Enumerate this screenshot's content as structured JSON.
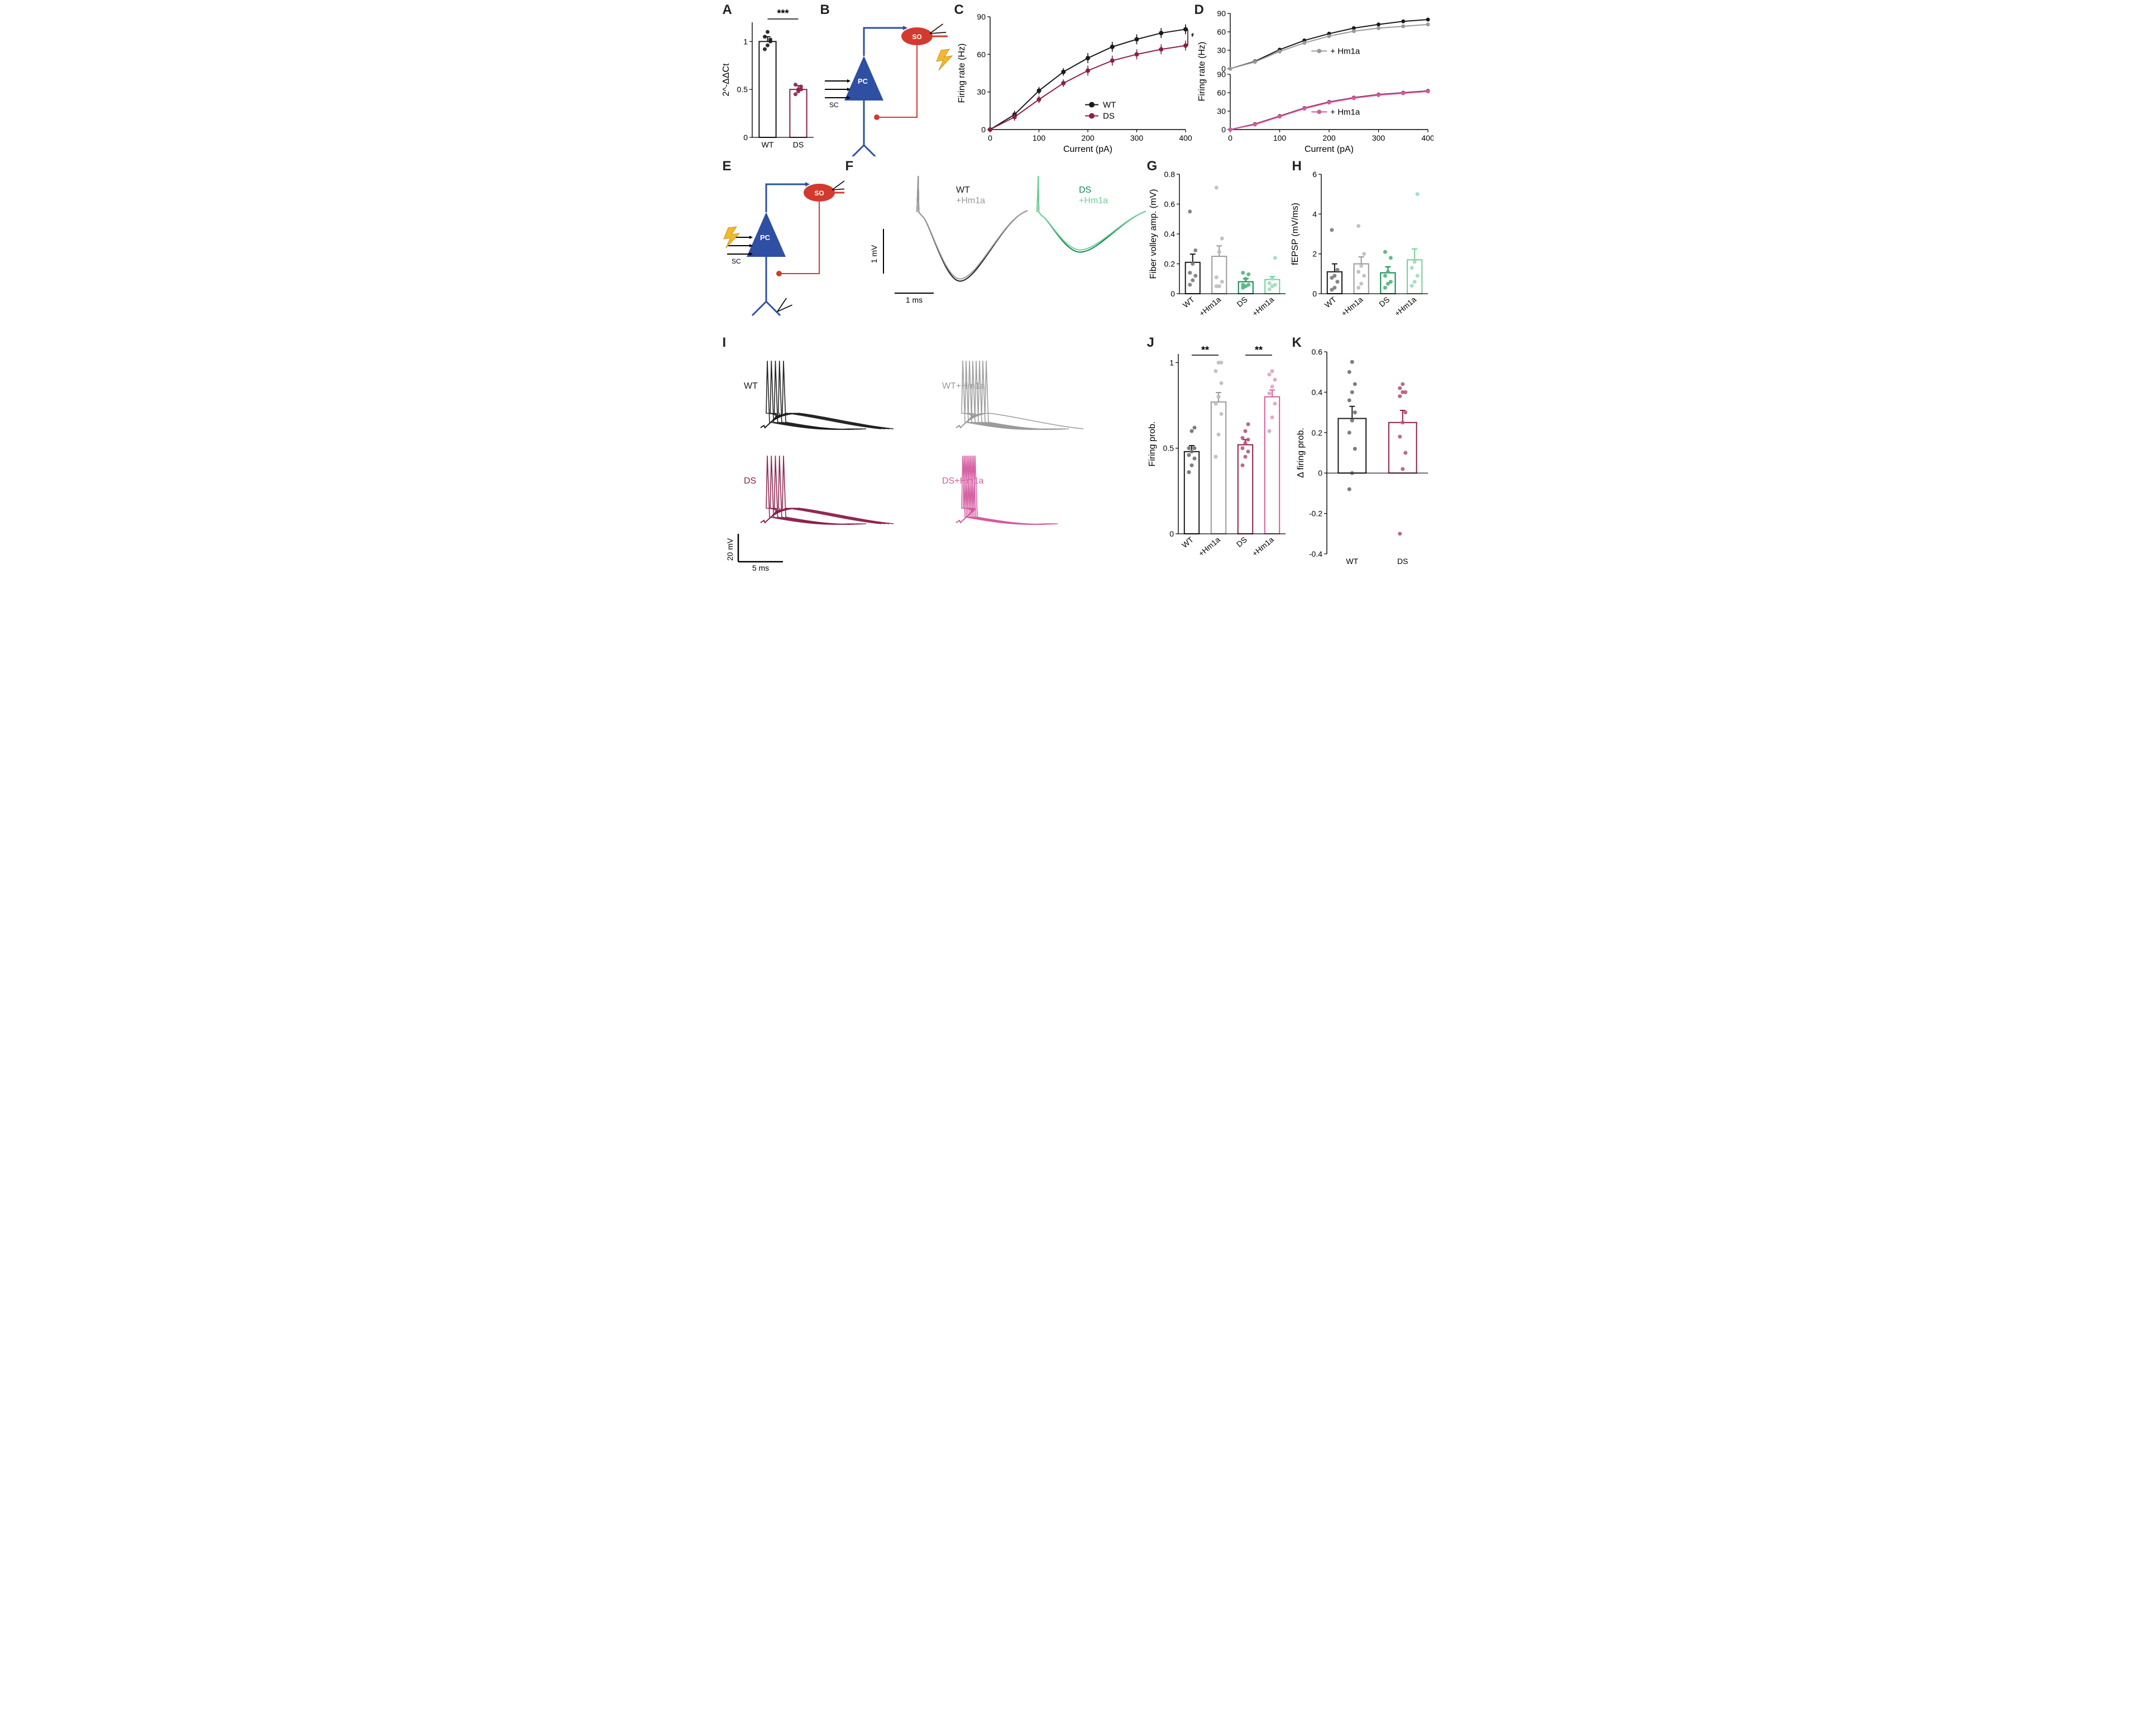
{
  "palette": {
    "wt": "#1a1a1a",
    "wt_grey": "#9a9a9a",
    "ds": "#8b1e4a",
    "ds_light": "#d45ba0",
    "ds_green": "#0e8a4f",
    "ds_green_light": "#6fd09a",
    "bg": "#ffffff",
    "pc_blue": "#2e4fa3",
    "so_red": "#d33a2f",
    "bolt": "#f2b92e"
  },
  "A": {
    "label": "A",
    "type": "bar",
    "ylabel": "2^-ΔΔCt",
    "ylim": [
      0,
      1.2
    ],
    "yticks": [
      0,
      0.5,
      1.0
    ],
    "categories": [
      "WT",
      "DS"
    ],
    "means": [
      1.0,
      0.5
    ],
    "sem": [
      0.05,
      0.04
    ],
    "points": {
      "WT": [
        0.92,
        0.96,
        1.0,
        1.05,
        1.1,
        1.02
      ],
      "DS": [
        0.45,
        0.48,
        0.5,
        0.55,
        0.5,
        0.53
      ]
    },
    "stroke_colors": [
      "#1a1a1a",
      "#8b1e4a"
    ],
    "fill_colors": [
      "none",
      "none"
    ],
    "bar_width": 0.55,
    "sig_label": "***",
    "label_fontsize": 14,
    "axis_fontsize": 14
  },
  "B": {
    "label": "B",
    "type": "schematic",
    "texts": {
      "PC": "PC",
      "SO": "SO",
      "SC": "SC"
    }
  },
  "C": {
    "label": "C",
    "type": "line",
    "xlabel": "Current (pA)",
    "ylabel": "Firing rate (Hz)",
    "xlim": [
      0,
      400
    ],
    "xticks": [
      0,
      100,
      200,
      300,
      400
    ],
    "ylim": [
      0,
      90
    ],
    "yticks": [
      0,
      30,
      60,
      90
    ],
    "series": [
      {
        "name": "WT",
        "legend": "WT",
        "color": "#1a1a1a",
        "marker": "circle",
        "x": [
          0,
          50,
          100,
          150,
          200,
          250,
          300,
          350,
          400
        ],
        "y": [
          0,
          12,
          31,
          46,
          57,
          66,
          72,
          77,
          80
        ],
        "sem": [
          0,
          3,
          3,
          3,
          4,
          4,
          4,
          4,
          4
        ]
      },
      {
        "name": "DS",
        "legend": "DS",
        "color": "#8b1e4a",
        "marker": "circle",
        "x": [
          0,
          50,
          100,
          150,
          200,
          250,
          300,
          350,
          400
        ],
        "y": [
          0,
          10,
          24,
          37,
          47,
          55,
          60,
          64,
          67
        ],
        "sem": [
          0,
          3,
          3,
          3,
          4,
          4,
          4,
          4,
          4
        ]
      }
    ],
    "sig_label": "*",
    "marker_size": 4
  },
  "D": {
    "label": "D",
    "type": "line-stacked",
    "xlabel": "Current (pA)",
    "ylabel_top": "Firing rate (Hz)",
    "xlim": [
      0,
      400
    ],
    "xticks": [
      0,
      100,
      200,
      300,
      400
    ],
    "ylim": [
      0,
      90
    ],
    "yticks": [
      0,
      30,
      60,
      90
    ],
    "top": {
      "series": [
        {
          "name": "WT",
          "color": "#1a1a1a",
          "x": [
            0,
            50,
            100,
            150,
            200,
            250,
            300,
            350,
            400
          ],
          "y": [
            0,
            12,
            31,
            46,
            57,
            66,
            72,
            77,
            80
          ]
        },
        {
          "name": "+Hm1a",
          "legend": "+ Hm1a",
          "color": "#9a9a9a",
          "x": [
            0,
            50,
            100,
            150,
            200,
            250,
            300,
            350,
            400
          ],
          "y": [
            0,
            11,
            28,
            42,
            53,
            61,
            66,
            69,
            72
          ]
        }
      ]
    },
    "bottom": {
      "series": [
        {
          "name": "DS",
          "color": "#8b1e4a",
          "x": [
            0,
            50,
            100,
            150,
            200,
            250,
            300,
            350,
            400
          ],
          "y": [
            0,
            9,
            22,
            35,
            45,
            52,
            57,
            60,
            63
          ]
        },
        {
          "name": "+Hm1a",
          "legend": "+ Hm1a",
          "color": "#d45ba0",
          "x": [
            0,
            50,
            100,
            150,
            200,
            250,
            300,
            350,
            400
          ],
          "y": [
            0,
            8,
            21,
            34,
            44,
            51,
            56,
            59,
            62
          ]
        }
      ]
    }
  },
  "E": {
    "label": "E",
    "type": "schematic",
    "texts": {
      "PC": "PC",
      "SO": "SO",
      "SC": "SC"
    }
  },
  "F": {
    "label": "F",
    "type": "traces",
    "legends": {
      "wt": "WT",
      "wt_hm": "+Hm1a",
      "ds": "DS",
      "ds_hm": "+Hm1a"
    },
    "scale": {
      "y_label": "1 mV",
      "x_label": "1 ms"
    }
  },
  "G": {
    "label": "G",
    "type": "bar",
    "ylabel": "Fiber volley amp. (mV)",
    "ylim": [
      0,
      0.8
    ],
    "yticks": [
      0,
      0.2,
      0.4,
      0.6,
      0.8
    ],
    "categories": [
      "WT",
      "+Hm1a",
      "DS",
      "+Hm1a"
    ],
    "means": [
      0.21,
      0.25,
      0.08,
      0.095
    ],
    "sem": [
      0.055,
      0.07,
      0.02,
      0.02
    ],
    "stroke_colors": [
      "#1a1a1a",
      "#9a9a9a",
      "#0e8a4f",
      "#6fd09a"
    ],
    "point_colors": [
      "#7a7a7a",
      "#bdbdbd",
      "#52b27d",
      "#9fdcbb"
    ],
    "points": {
      "WT": [
        0.06,
        0.09,
        0.12,
        0.14,
        0.2,
        0.29,
        0.55
      ],
      "+Hm1a": [
        0.05,
        0.05,
        0.08,
        0.11,
        0.28,
        0.37,
        0.71
      ],
      "DS": [
        0.04,
        0.05,
        0.06,
        0.06,
        0.1,
        0.13,
        0.14
      ],
      "+Hm1a__2": [
        0.03,
        0.05,
        0.06,
        0.07,
        0.1,
        0.24
      ]
    },
    "bar_width": 0.55
  },
  "H": {
    "label": "H",
    "type": "bar",
    "ylabel": "fEPSP (mV/ms)",
    "ylim": [
      0,
      6
    ],
    "yticks": [
      0,
      2,
      4,
      6
    ],
    "categories": [
      "WT",
      "+Hm1a",
      "DS",
      "+Hm1a"
    ],
    "means": [
      1.1,
      1.5,
      1.05,
      1.7
    ],
    "sem": [
      0.4,
      0.35,
      0.3,
      0.55
    ],
    "stroke_colors": [
      "#1a1a1a",
      "#9a9a9a",
      "#0e8a4f",
      "#6fd09a"
    ],
    "point_colors": [
      "#7a7a7a",
      "#bdbdbd",
      "#52b27d",
      "#9fdcbb"
    ],
    "points": {
      "WT": [
        0.2,
        0.3,
        0.6,
        0.8,
        0.9,
        1.2,
        3.2
      ],
      "+Hm1a": [
        0.3,
        0.5,
        0.9,
        1.1,
        1.4,
        2.0,
        3.4
      ],
      "DS": [
        0.3,
        0.5,
        0.6,
        0.9,
        1.1,
        1.8,
        2.1
      ],
      "+Hm1a__2": [
        0.4,
        0.6,
        0.9,
        1.3,
        1.6,
        5.0
      ]
    },
    "bar_width": 0.55
  },
  "I": {
    "label": "I",
    "type": "traces-grid",
    "labels": {
      "wt": "WT",
      "wt_hm": "WT+Hm1a",
      "ds": "DS",
      "ds_hm": "DS+Hm1a"
    },
    "scale": {
      "y_label": "20 mV",
      "x_label": "5 ms"
    },
    "colors": {
      "wt": "#1a1a1a",
      "wt_hm": "#9a9a9a",
      "ds": "#8b1e4a",
      "ds_hm": "#d45ba0"
    }
  },
  "J": {
    "label": "J",
    "type": "bar",
    "ylabel": "Firing prob.",
    "ylim": [
      0,
      1.05
    ],
    "yticks": [
      0,
      0.5,
      1.0
    ],
    "categories": [
      "WT",
      "+Hm1a",
      "DS",
      "+Hm1a"
    ],
    "means": [
      0.48,
      0.77,
      0.52,
      0.8
    ],
    "sem": [
      0.035,
      0.055,
      0.03,
      0.04
    ],
    "stroke_colors": [
      "#1a1a1a",
      "#9a9a9a",
      "#8b1e4a",
      "#d45ba0"
    ],
    "point_colors": [
      "#6f6f6f",
      "#bdbdbd",
      "#b35a7d",
      "#e79cc6"
    ],
    "points": {
      "WT": [
        0.36,
        0.4,
        0.44,
        0.46,
        0.48,
        0.5,
        0.5,
        0.6,
        0.62
      ],
      "+Hm1a": [
        0.45,
        0.58,
        0.7,
        0.76,
        0.8,
        0.88,
        0.95,
        1.0,
        1.0
      ],
      "DS": [
        0.4,
        0.45,
        0.48,
        0.5,
        0.53,
        0.55,
        0.56,
        0.6,
        0.64
      ],
      "+Hm1a__2": [
        0.6,
        0.68,
        0.76,
        0.82,
        0.86,
        0.9,
        0.93,
        0.95
      ]
    },
    "bar_width": 0.55,
    "sig_pairs": [
      [
        0,
        1,
        "**"
      ],
      [
        2,
        3,
        "**"
      ]
    ]
  },
  "K": {
    "label": "K",
    "type": "bar",
    "ylabel": "Δ firing prob.",
    "ylim": [
      -0.4,
      0.6
    ],
    "yticks": [
      -0.4,
      -0.2,
      0,
      0.2,
      0.4,
      0.6
    ],
    "categories": [
      "WT",
      "DS"
    ],
    "means": [
      0.27,
      0.25
    ],
    "sem": [
      0.06,
      0.06
    ],
    "stroke_colors": [
      "#1a1a1a",
      "#8b1e4a"
    ],
    "point_colors": [
      "#6f6f6f",
      "#b35a7d"
    ],
    "points": {
      "WT": [
        -0.08,
        0.0,
        0.12,
        0.2,
        0.26,
        0.3,
        0.36,
        0.4,
        0.44,
        0.5,
        0.55
      ],
      "DS": [
        -0.3,
        0.02,
        0.1,
        0.18,
        0.25,
        0.3,
        0.38,
        0.4,
        0.4,
        0.42,
        0.44
      ]
    },
    "bar_width": 0.55
  }
}
